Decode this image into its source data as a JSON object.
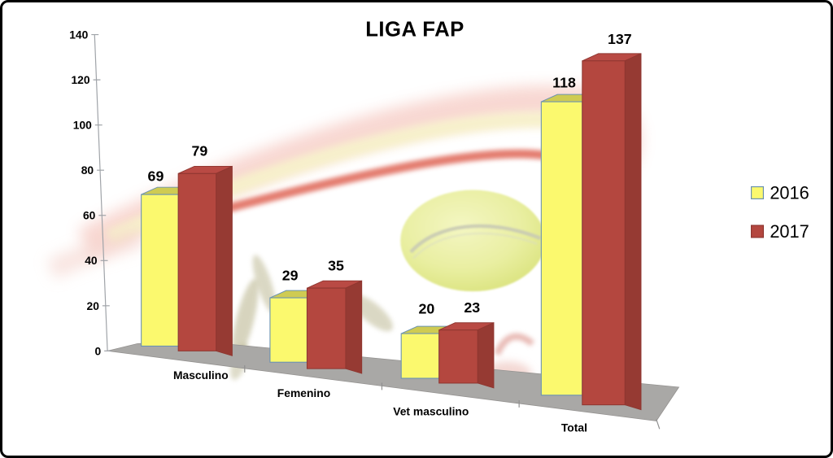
{
  "chart_data": {
    "type": "bar",
    "style": "3d-clustered-column",
    "title": "LIGA FAP",
    "categories": [
      "Masculino",
      "Femenino",
      "Vet masculino",
      "Total"
    ],
    "series": [
      {
        "name": "2016",
        "color": "#fbf96e",
        "values": [
          69,
          29,
          20,
          118
        ]
      },
      {
        "name": "2017",
        "color": "#b4473f",
        "values": [
          79,
          35,
          23,
          137
        ]
      }
    ],
    "ylim": [
      0,
      140
    ],
    "ytick_step": 20,
    "grid": false,
    "legend_position": "right",
    "data_labels": true,
    "background_decorations": [
      "red swoosh ribbon",
      "tennis ball",
      "white dots",
      "olive silhouette"
    ]
  },
  "colors": {
    "series_2016_front": "#fbf96e",
    "series_2016_top": "#cfcb52",
    "series_2016_edge": "#6a92b2",
    "series_2017_front": "#b4473f",
    "series_2017_top": "#b94a44",
    "series_2017_side": "#963a33",
    "series_2017_edge": "#8e3630",
    "floor": "#a9a8a6",
    "floor_edge": "#949290",
    "axis": "#9fa3a8",
    "text": "#000000",
    "frame_border": "#000000",
    "background": "#ffffff"
  }
}
